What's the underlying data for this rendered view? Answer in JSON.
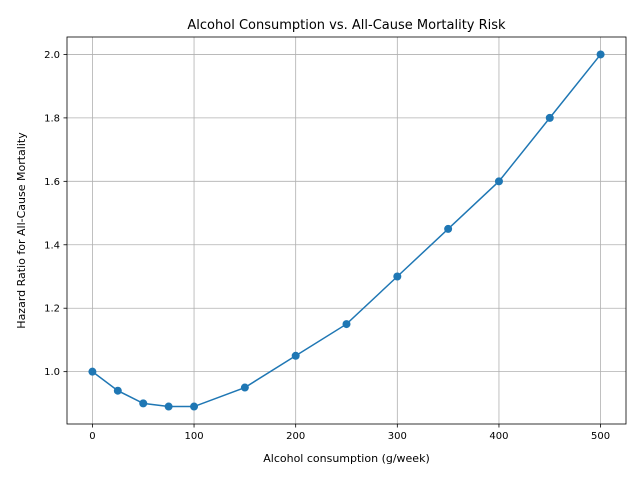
{
  "chart_data": {
    "type": "line",
    "title": "Alcohol Consumption vs. All-Cause Mortality Risk",
    "xlabel": "Alcohol consumption (g/week)",
    "ylabel": "Hazard Ratio for All-Cause Mortality",
    "xlim": [
      -25,
      525
    ],
    "ylim": [
      0.835,
      2.055
    ],
    "xticks": [
      0,
      100,
      200,
      300,
      400,
      500
    ],
    "yticks": [
      1.0,
      1.2,
      1.4,
      1.6,
      1.8,
      2.0
    ],
    "xtick_labels": [
      "0",
      "100",
      "200",
      "300",
      "400",
      "500"
    ],
    "ytick_labels": [
      "1.0",
      "1.2",
      "1.4",
      "1.6",
      "1.8",
      "2.0"
    ],
    "grid": true,
    "marker": "circle",
    "series": [
      {
        "color": "#1f77b4",
        "x": [
          0,
          25,
          50,
          75,
          100,
          150,
          200,
          250,
          300,
          350,
          400,
          450,
          500
        ],
        "y": [
          1.0,
          0.94,
          0.9,
          0.89,
          0.89,
          0.95,
          1.05,
          1.15,
          1.3,
          1.45,
          1.6,
          1.8,
          2.0
        ]
      }
    ]
  }
}
